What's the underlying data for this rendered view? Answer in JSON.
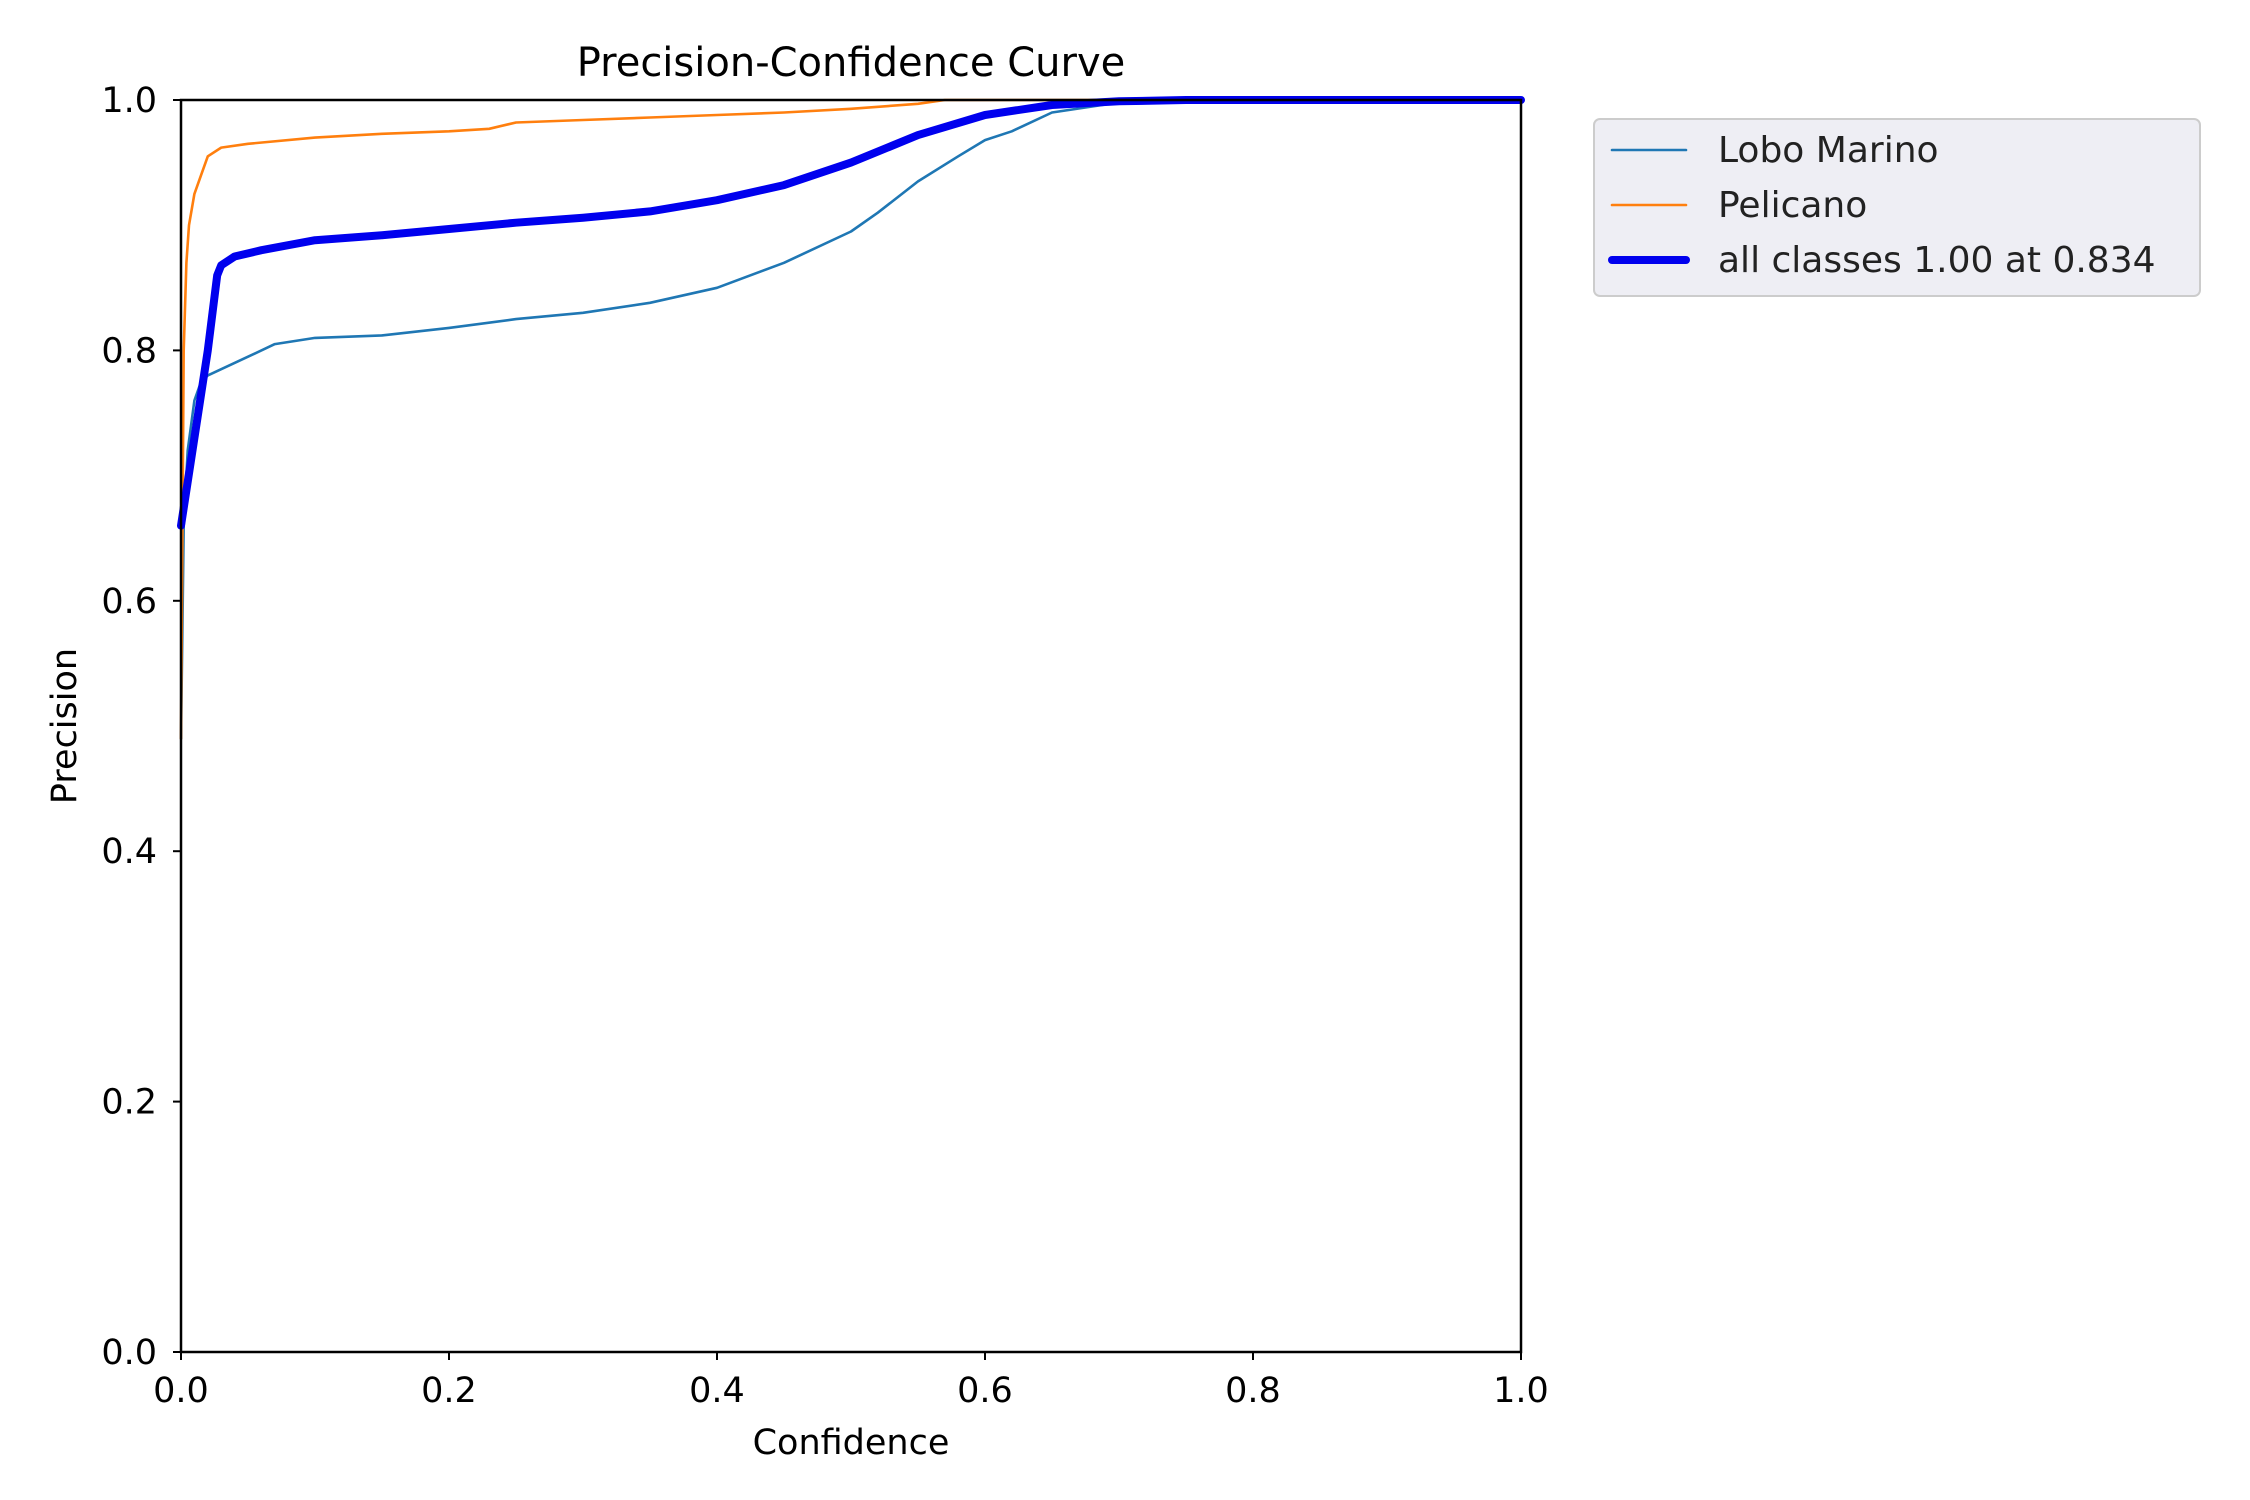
{
  "chart_data": {
    "type": "line",
    "title": "Precision-Confidence Curve",
    "xlabel": "Confidence",
    "ylabel": "Precision",
    "xlim": [
      0,
      1
    ],
    "ylim": [
      0,
      1
    ],
    "xticks": [
      "0.0",
      "0.2",
      "0.4",
      "0.6",
      "0.8",
      "1.0"
    ],
    "yticks": [
      "0.0",
      "0.2",
      "0.4",
      "0.6",
      "0.8",
      "1.0"
    ],
    "grid": false,
    "legend_position": "outside-top-right",
    "series": [
      {
        "name": "Lobo Marino",
        "color": "#1f77b4",
        "width": "thin",
        "x": [
          0.0,
          0.002,
          0.005,
          0.01,
          0.015,
          0.02,
          0.03,
          0.05,
          0.07,
          0.1,
          0.15,
          0.2,
          0.25,
          0.3,
          0.35,
          0.4,
          0.45,
          0.5,
          0.52,
          0.55,
          0.58,
          0.6,
          0.62,
          0.65,
          0.7,
          0.75,
          0.8,
          0.9,
          1.0
        ],
        "y": [
          0.49,
          0.66,
          0.72,
          0.76,
          0.775,
          0.78,
          0.785,
          0.795,
          0.805,
          0.81,
          0.812,
          0.818,
          0.825,
          0.83,
          0.838,
          0.85,
          0.87,
          0.895,
          0.91,
          0.935,
          0.955,
          0.968,
          0.975,
          0.99,
          0.998,
          1.0,
          1.0,
          1.0,
          1.0
        ]
      },
      {
        "name": "Pelicano",
        "color": "#ff7f0e",
        "width": "thin",
        "x": [
          0.0,
          0.002,
          0.004,
          0.006,
          0.01,
          0.015,
          0.02,
          0.03,
          0.05,
          0.1,
          0.15,
          0.2,
          0.23,
          0.25,
          0.3,
          0.35,
          0.4,
          0.45,
          0.5,
          0.55,
          0.57,
          0.6,
          0.7,
          1.0
        ],
        "y": [
          0.49,
          0.8,
          0.87,
          0.9,
          0.925,
          0.94,
          0.955,
          0.962,
          0.965,
          0.97,
          0.973,
          0.975,
          0.977,
          0.982,
          0.984,
          0.986,
          0.988,
          0.99,
          0.993,
          0.997,
          1.0,
          1.0,
          1.0,
          1.0
        ]
      },
      {
        "name": "all classes 1.00 at 0.834",
        "color": "#0000ee",
        "width": "thick",
        "x": [
          0.0,
          0.01,
          0.02,
          0.027,
          0.03,
          0.04,
          0.06,
          0.1,
          0.15,
          0.2,
          0.25,
          0.3,
          0.35,
          0.4,
          0.45,
          0.5,
          0.55,
          0.6,
          0.65,
          0.7,
          0.75,
          0.834,
          0.9,
          1.0
        ],
        "y": [
          0.66,
          0.73,
          0.8,
          0.86,
          0.868,
          0.875,
          0.88,
          0.888,
          0.892,
          0.897,
          0.902,
          0.906,
          0.911,
          0.92,
          0.932,
          0.95,
          0.972,
          0.988,
          0.996,
          0.999,
          1.0,
          1.0,
          1.0,
          1.0
        ]
      }
    ]
  }
}
